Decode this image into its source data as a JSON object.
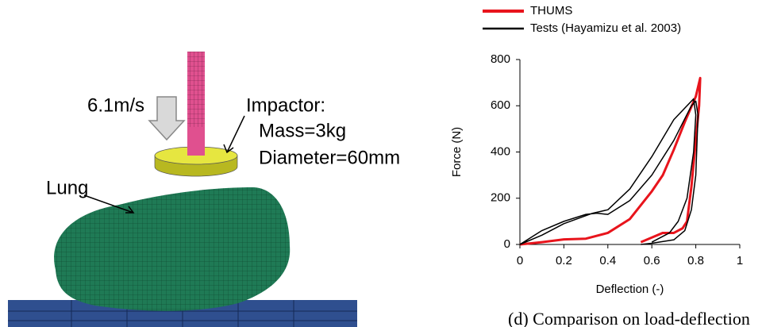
{
  "illustration": {
    "velocity": "6.1m/s",
    "impactor_label": "Impactor:",
    "mass": "Mass=3kg",
    "diameter": "Diameter=60mm",
    "lung_label": "Lung"
  },
  "chart_data": {
    "type": "line",
    "xlabel": "Deflection (-)",
    "ylabel": "Force (N)",
    "xlim": [
      0,
      1
    ],
    "xticks": [
      0,
      0.2,
      0.4,
      0.6,
      0.8,
      1
    ],
    "ylim": [
      0,
      800
    ],
    "yticks": [
      0,
      200,
      400,
      600,
      800
    ],
    "grid": false,
    "series": [
      {
        "name": "THUMS",
        "color": "#e8141c",
        "width": 3,
        "x": [
          0,
          0.1,
          0.2,
          0.3,
          0.4,
          0.5,
          0.6,
          0.65,
          0.7,
          0.75,
          0.8,
          0.82,
          0.815,
          0.8,
          0.78,
          0.76,
          0.74,
          0.7,
          0.65,
          0.6,
          0.55
        ],
        "values": [
          0,
          10,
          22,
          25,
          50,
          110,
          230,
          300,
          410,
          530,
          640,
          720,
          600,
          450,
          250,
          100,
          70,
          50,
          50,
          30,
          10
        ]
      },
      {
        "name": "Tests (Hayamizu et al. 2003)",
        "color": "#000000",
        "width": 1.5,
        "x": [
          0,
          0.1,
          0.2,
          0.3,
          0.35,
          0.4,
          0.5,
          0.6,
          0.7,
          0.78,
          0.8,
          0.81,
          0.8,
          0.78,
          0.75,
          0.7,
          0.6,
          0.55,
          null,
          0,
          0.1,
          0.2,
          0.33,
          0.4,
          0.5,
          0.6,
          0.7,
          0.79,
          0.8,
          0.79,
          0.76,
          0.72,
          0.68,
          0.6
        ],
        "values": [
          0,
          60,
          100,
          130,
          135,
          130,
          190,
          300,
          450,
          600,
          620,
          560,
          300,
          150,
          60,
          20,
          5,
          0,
          null,
          0,
          40,
          90,
          135,
          150,
          240,
          380,
          540,
          630,
          560,
          400,
          200,
          100,
          50,
          10
        ]
      }
    ]
  },
  "caption": "(d)   Comparison on load-deflection"
}
